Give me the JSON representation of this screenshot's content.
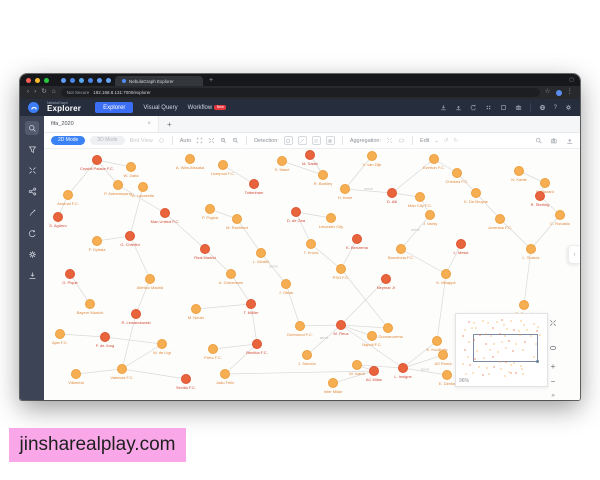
{
  "browser": {
    "tab_title": "NebulaGraph Explorer",
    "icons": {
      "back": "‹",
      "forward": "›",
      "reload": "↻",
      "home": "⌂",
      "star": "☆",
      "menu": "⋮",
      "new_tab": "+"
    },
    "security": "Not Secure",
    "url": "192.168.8.131:7000/explorer"
  },
  "app": {
    "brand_small": "NebulaGraph",
    "brand": "Explorer",
    "nav": [
      {
        "id": "explorer",
        "label": "Explorer",
        "active": true
      },
      {
        "id": "visual-query",
        "label": "Visual Query",
        "active": false
      },
      {
        "id": "workflow",
        "label": "Workflow",
        "active": false,
        "badge": "New"
      }
    ],
    "header_icons": [
      {
        "name": "import-icon",
        "icon": "download"
      },
      {
        "name": "export-icon",
        "icon": "upload"
      },
      {
        "name": "history-icon",
        "icon": "undo"
      },
      {
        "name": "apps-icon",
        "icon": "dots4"
      },
      {
        "name": "save-icon",
        "icon": "box"
      },
      {
        "name": "snapshot-icon",
        "icon": "camera"
      },
      {
        "name": "divider"
      },
      {
        "name": "language-icon",
        "icon": "globe"
      },
      {
        "name": "help-icon",
        "text": "?"
      },
      {
        "name": "settings-icon",
        "icon": "gear"
      }
    ]
  },
  "sidebar": {
    "items": [
      {
        "id": "search",
        "icon": "magnifier",
        "active": true
      },
      {
        "id": "filter",
        "icon": "funnel",
        "active": false
      },
      {
        "id": "expand",
        "icon": "xarrows",
        "active": false
      },
      {
        "id": "graph-algorithm",
        "icon": "network",
        "active": false
      },
      {
        "id": "edit",
        "icon": "pencil",
        "active": false
      },
      {
        "id": "history",
        "icon": "undo",
        "active": false
      },
      {
        "id": "settings",
        "icon": "gear",
        "active": false
      },
      {
        "id": "export",
        "icon": "download",
        "active": false
      }
    ]
  },
  "workspace": {
    "tab": {
      "label": "fifa_2020",
      "close": "×",
      "add": "+"
    },
    "toolbar": {
      "mode_2d": "2D Mode",
      "mode_3d": "3D Mode",
      "bird_view": "Bird View",
      "auto_label": "Auto",
      "detection_label": "Detection:",
      "aggregation_label": "Aggregation:",
      "edit_label": "Edit",
      "edit_caret": "⌄",
      "undo_glyph": "↺",
      "redo_glyph": "↻"
    },
    "minimap": {
      "zoom_label": "96%",
      "zoom_in": "+",
      "zoom_out": "−",
      "collapse": "»",
      "handle": "‹"
    }
  },
  "graph": {
    "colors": {
      "d": {
        "fill": "#e8643c",
        "stroke": "#de5531",
        "label": "#cf4a36"
      },
      "l": {
        "fill": "#f6ae52",
        "stroke": "#eda03f",
        "label": "#e0883c"
      }
    },
    "edge_color": "#d9d9d9",
    "nodes": [
      [
        53,
        11,
        "d",
        "Crystal Palace F.C."
      ],
      [
        87,
        18,
        "l",
        "W. Zaha"
      ],
      [
        146,
        10,
        "l",
        "A. Wan-Bissaka"
      ],
      [
        179,
        16,
        "l",
        "Liverpool F.C."
      ],
      [
        238,
        12,
        "l",
        "S. Mané"
      ],
      [
        266,
        6,
        "d",
        "M. Salah"
      ],
      [
        328,
        7,
        "l",
        "V. van Dijk"
      ],
      [
        390,
        10,
        "l",
        "Everton F.C."
      ],
      [
        279,
        26,
        "l",
        "R. Barkley"
      ],
      [
        413,
        24,
        "l",
        "Chelsea F.C."
      ],
      [
        475,
        22,
        "l",
        "N. Kanté"
      ],
      [
        501,
        34,
        "l",
        "E. Hazard"
      ],
      [
        24,
        46,
        "l",
        "Arsenal F.C."
      ],
      [
        74,
        36,
        "l",
        "P. Aubameyang"
      ],
      [
        99,
        38,
        "l",
        "A. Lacazette"
      ],
      [
        210,
        35,
        "d",
        "Tottenham"
      ],
      [
        301,
        40,
        "l",
        "H. Kane"
      ],
      [
        348,
        44,
        "d",
        "D. Alli"
      ],
      [
        376,
        48,
        "l",
        "Man City F.C."
      ],
      [
        432,
        44,
        "l",
        "K. De Bruyne"
      ],
      [
        496,
        47,
        "d",
        "R. Sterling"
      ],
      [
        14,
        68,
        "d",
        "S. Agüero"
      ],
      [
        121,
        64,
        "d",
        "Man United F.C."
      ],
      [
        166,
        60,
        "l",
        "P. Pogba"
      ],
      [
        193,
        70,
        "l",
        "M. Rashford"
      ],
      [
        252,
        63,
        "d",
        "D. de Gea"
      ],
      [
        287,
        69,
        "l",
        "Leicester City"
      ],
      [
        386,
        66,
        "l",
        "J. Vardy"
      ],
      [
        456,
        70,
        "l",
        "Juventus F.C."
      ],
      [
        516,
        66,
        "l",
        "C. Ronaldo"
      ],
      [
        53,
        92,
        "l",
        "P. Dybala"
      ],
      [
        86,
        87,
        "d",
        "G. Chiellini"
      ],
      [
        161,
        100,
        "d",
        "Real Madrid"
      ],
      [
        217,
        104,
        "l",
        "L. Modrić"
      ],
      [
        267,
        95,
        "l",
        "T. Kroos"
      ],
      [
        313,
        90,
        "d",
        "K. Benzema"
      ],
      [
        357,
        100,
        "l",
        "Barcelona F.C."
      ],
      [
        417,
        95,
        "d",
        "L. Messi"
      ],
      [
        487,
        100,
        "l",
        "L. Suárez"
      ],
      [
        26,
        125,
        "d",
        "G. Piqué"
      ],
      [
        106,
        130,
        "l",
        "Atlético Madrid"
      ],
      [
        187,
        125,
        "l",
        "A. Griezmann"
      ],
      [
        242,
        135,
        "l",
        "J. Oblak"
      ],
      [
        297,
        120,
        "l",
        "PSG F.C."
      ],
      [
        342,
        130,
        "d",
        "Neymar Jr"
      ],
      [
        402,
        125,
        "l",
        "K. Mbappé"
      ],
      [
        480,
        156,
        "l",
        "E. Cavani"
      ],
      [
        46,
        155,
        "l",
        "Bayern Munich"
      ],
      [
        92,
        165,
        "d",
        "R. Lewandowski"
      ],
      [
        152,
        160,
        "l",
        "M. Neuer"
      ],
      [
        207,
        155,
        "d",
        "T. Müller"
      ],
      [
        256,
        177,
        "l",
        "Dortmund F.C."
      ],
      [
        297,
        176,
        "d",
        "M. Reus"
      ],
      [
        263,
        206,
        "l",
        "J. Sancho"
      ],
      [
        289,
        234,
        "l",
        "Inter Milan"
      ],
      [
        313,
        216,
        "l",
        "M. Icardi"
      ],
      [
        330,
        222,
        "d",
        "AC Milan"
      ],
      [
        344,
        179,
        "l",
        "G. Donnarumma"
      ],
      [
        328,
        187,
        "l",
        "Napoli F.C."
      ],
      [
        359,
        219,
        "d",
        "L. Insigne"
      ],
      [
        393,
        192,
        "l",
        "K. Koulibaly"
      ],
      [
        399,
        206,
        "l",
        "AS Roma"
      ],
      [
        403,
        226,
        "l",
        "E. Džeko"
      ],
      [
        16,
        185,
        "l",
        "Ajax F.C."
      ],
      [
        61,
        188,
        "d",
        "F. de Jong"
      ],
      [
        118,
        195,
        "l",
        "M. de Ligt"
      ],
      [
        169,
        200,
        "l",
        "Porto F.C."
      ],
      [
        213,
        195,
        "d",
        "Benfica F.C."
      ],
      [
        181,
        225,
        "l",
        "João Félix"
      ],
      [
        142,
        230,
        "d",
        "Sevilla F.C."
      ],
      [
        78,
        220,
        "l",
        "Valencia F.C."
      ],
      [
        32,
        225,
        "l",
        "Villarreal"
      ]
    ],
    "edges": [
      [
        0,
        12
      ],
      [
        0,
        13
      ],
      [
        1,
        0
      ],
      [
        3,
        15
      ],
      [
        4,
        8
      ],
      [
        5,
        8
      ],
      [
        6,
        16
      ],
      [
        16,
        17,
        "serve"
      ],
      [
        17,
        18
      ],
      [
        18,
        27
      ],
      [
        7,
        9
      ],
      [
        7,
        17
      ],
      [
        9,
        19
      ],
      [
        19,
        28
      ],
      [
        10,
        11
      ],
      [
        11,
        20
      ],
      [
        20,
        29
      ],
      [
        21,
        12
      ],
      [
        23,
        24
      ],
      [
        24,
        33
      ],
      [
        25,
        26
      ],
      [
        25,
        34
      ],
      [
        27,
        36,
        "serve"
      ],
      [
        28,
        38
      ],
      [
        30,
        31
      ],
      [
        31,
        40
      ],
      [
        14,
        31
      ],
      [
        13,
        22
      ],
      [
        22,
        32
      ],
      [
        32,
        41
      ],
      [
        33,
        42,
        "serve"
      ],
      [
        34,
        43
      ],
      [
        35,
        43
      ],
      [
        36,
        45
      ],
      [
        37,
        45
      ],
      [
        39,
        47
      ],
      [
        40,
        48
      ],
      [
        41,
        50
      ],
      [
        42,
        51
      ],
      [
        43,
        57
      ],
      [
        44,
        52
      ],
      [
        45,
        60
      ],
      [
        46,
        38
      ],
      [
        48,
        70
      ],
      [
        49,
        50
      ],
      [
        50,
        67
      ],
      [
        51,
        52
      ],
      [
        52,
        53,
        "serve"
      ],
      [
        52,
        57
      ],
      [
        52,
        58
      ],
      [
        52,
        59
      ],
      [
        56,
        55
      ],
      [
        56,
        54
      ],
      [
        56,
        68
      ],
      [
        59,
        60
      ],
      [
        59,
        61
      ],
      [
        59,
        62,
        "serve"
      ],
      [
        59,
        55
      ],
      [
        63,
        64
      ],
      [
        64,
        65
      ],
      [
        65,
        70
      ],
      [
        66,
        67
      ],
      [
        67,
        68
      ],
      [
        69,
        70
      ],
      [
        71,
        70
      ],
      [
        29,
        38
      ]
    ]
  },
  "watermark": {
    "text": "jinsharealplay.com"
  }
}
